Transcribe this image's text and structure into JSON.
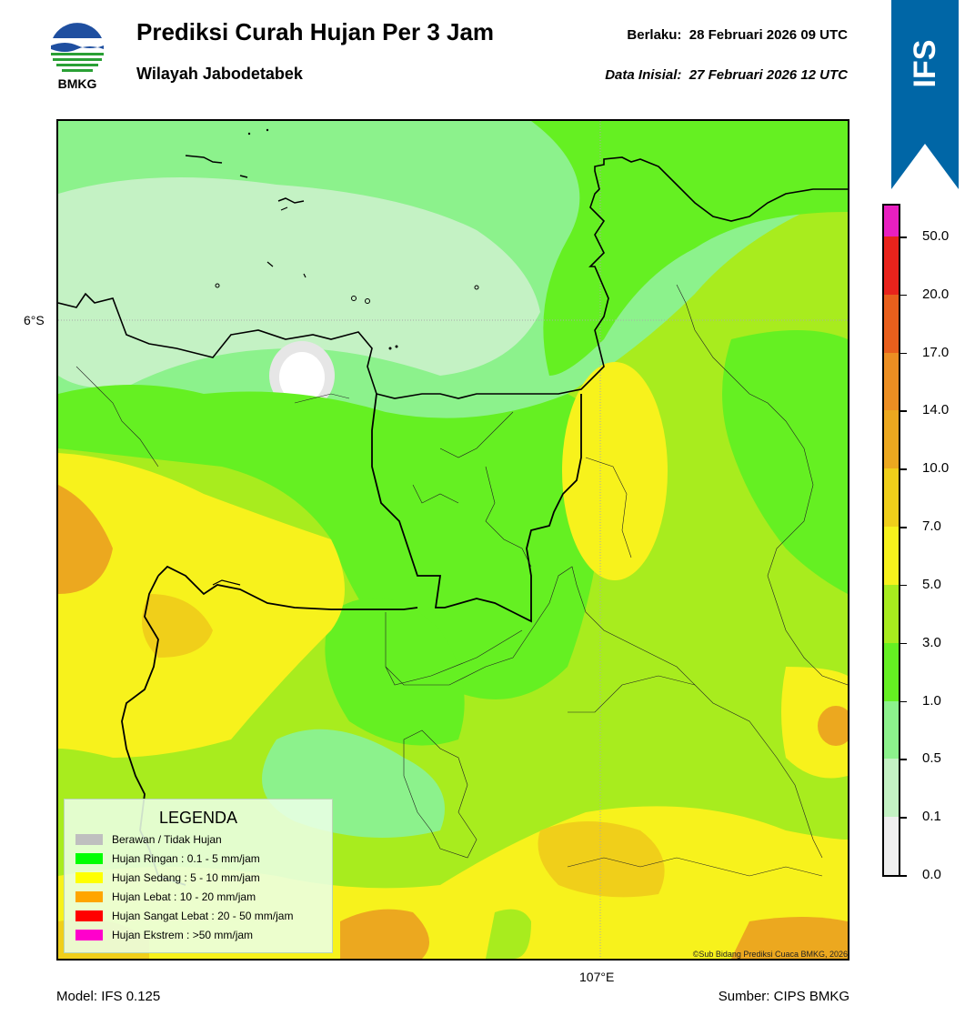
{
  "header": {
    "title": "Prediksi Curah Hujan Per 3 Jam",
    "subtitle": "Wilayah Jabodetabek",
    "valid_label": "Berlaku:  28 Februari 2026 09 UTC",
    "init_label": "Data Inisial:  27 Februari 2026 12 UTC",
    "logo_text": "BMKG"
  },
  "ribbon": {
    "text": "IFS",
    "color": "#0066a6"
  },
  "map": {
    "lat_label": "6°S",
    "lon_label": "107°E",
    "credit": "©Sub Bidang Prediksi Cuaca BMKG, 2026"
  },
  "legend": {
    "title": "LEGENDA",
    "items": [
      {
        "label": "Berawan / Tidak Hujan",
        "color": "#bfbfbf"
      },
      {
        "label": "Hujan Ringan : 0.1 - 5 mm/jam",
        "color": "#00ff00"
      },
      {
        "label": "Hujan Sedang : 5 - 10 mm/jam",
        "color": "#ffff00"
      },
      {
        "label": "Hujan Lebat : 10 - 20 mm/jam",
        "color": "#ffa500"
      },
      {
        "label": "Hujan Sangat Lebat : 20 - 50 mm/jam",
        "color": "#ff0000"
      },
      {
        "label": "Hujan Ekstrem : >50 mm/jam",
        "color": "#ff00cc"
      }
    ]
  },
  "colorbar": {
    "ticks": [
      "50.0",
      "20.0",
      "17.0",
      "14.0",
      "10.0",
      "7.0",
      "5.0",
      "3.0",
      "1.0",
      "0.5",
      "0.1",
      "0.0"
    ],
    "colors_top_to_bottom": [
      "#e81fc0",
      "#e8231c",
      "#e85f1c",
      "#ec8e22",
      "#eca81f",
      "#f0cf1a",
      "#f7f21c",
      "#a8ec1e",
      "#65f022",
      "#8cf28c",
      "#c4f2c4",
      "#efefef"
    ]
  },
  "footer": {
    "model": "Model: IFS 0.125",
    "source": "Sumber: CIPS BMKG"
  }
}
